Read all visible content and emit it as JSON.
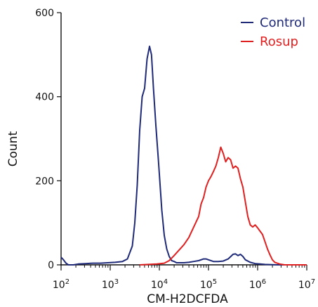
{
  "chart_data": {
    "type": "line",
    "title": "",
    "xlabel": "CM-H2DCFDA",
    "ylabel": "Count",
    "x_scale": "log10",
    "xlim": [
      100,
      10000000
    ],
    "ylim": [
      0,
      600
    ],
    "x_ticks": [
      {
        "value": 100,
        "base": "10",
        "exp": "2"
      },
      {
        "value": 1000,
        "base": "10",
        "exp": "3"
      },
      {
        "value": 10000,
        "base": "10",
        "exp": "4"
      },
      {
        "value": 100000,
        "base": "10",
        "exp": "5"
      },
      {
        "value": 1000000,
        "base": "10",
        "exp": "6"
      },
      {
        "value": 10000000,
        "base": "10",
        "exp": "7"
      }
    ],
    "y_ticks": [
      0,
      200,
      400,
      600
    ],
    "legend_position": "top-right",
    "series": [
      {
        "name": "Control",
        "color": "#1f2a78",
        "points": [
          [
            100,
            18
          ],
          [
            112,
            12
          ],
          [
            126,
            4
          ],
          [
            141,
            0
          ],
          [
            178,
            0
          ],
          [
            224,
            2
          ],
          [
            316,
            3
          ],
          [
            447,
            4
          ],
          [
            631,
            4
          ],
          [
            891,
            5
          ],
          [
            1259,
            6
          ],
          [
            1778,
            8
          ],
          [
            2239,
            14
          ],
          [
            2818,
            45
          ],
          [
            3162,
            100
          ],
          [
            3548,
            190
          ],
          [
            3981,
            320
          ],
          [
            4467,
            400
          ],
          [
            5012,
            420
          ],
          [
            5623,
            490
          ],
          [
            6310,
            520
          ],
          [
            6918,
            500
          ],
          [
            7586,
            420
          ],
          [
            8511,
            330
          ],
          [
            9550,
            250
          ],
          [
            11220,
            130
          ],
          [
            12589,
            70
          ],
          [
            14125,
            38
          ],
          [
            15849,
            20
          ],
          [
            17783,
            10
          ],
          [
            19953,
            8
          ],
          [
            22387,
            5
          ],
          [
            25119,
            5
          ],
          [
            31623,
            5
          ],
          [
            39811,
            6
          ],
          [
            50119,
            8
          ],
          [
            63096,
            10
          ],
          [
            79433,
            14
          ],
          [
            89125,
            14
          ],
          [
            100000,
            12
          ],
          [
            125893,
            8
          ],
          [
            158489,
            8
          ],
          [
            199526,
            9
          ],
          [
            251189,
            14
          ],
          [
            316228,
            25
          ],
          [
            354813,
            26
          ],
          [
            398107,
            22
          ],
          [
            446684,
            25
          ],
          [
            501187,
            20
          ],
          [
            562341,
            12
          ],
          [
            707946,
            6
          ],
          [
            891251,
            3
          ],
          [
            1122018,
            2
          ],
          [
            1412538,
            1
          ],
          [
            2511886,
            0
          ],
          [
            10000000,
            0
          ]
        ]
      },
      {
        "name": "Rosup",
        "color": "#e02020",
        "points": [
          [
            3981,
            0
          ],
          [
            8913,
            2
          ],
          [
            12589,
            4
          ],
          [
            15849,
            10
          ],
          [
            19953,
            22
          ],
          [
            25119,
            35
          ],
          [
            31623,
            48
          ],
          [
            39811,
            65
          ],
          [
            50119,
            90
          ],
          [
            63096,
            115
          ],
          [
            70795,
            145
          ],
          [
            79433,
            160
          ],
          [
            89125,
            185
          ],
          [
            100000,
            200
          ],
          [
            112202,
            210
          ],
          [
            125893,
            222
          ],
          [
            141254,
            235
          ],
          [
            158489,
            255
          ],
          [
            177828,
            280
          ],
          [
            199526,
            265
          ],
          [
            223872,
            245
          ],
          [
            251189,
            255
          ],
          [
            281838,
            250
          ],
          [
            316228,
            230
          ],
          [
            354813,
            235
          ],
          [
            398107,
            230
          ],
          [
            446684,
            205
          ],
          [
            501187,
            185
          ],
          [
            562341,
            150
          ],
          [
            630957,
            115
          ],
          [
            707946,
            95
          ],
          [
            794328,
            90
          ],
          [
            891251,
            95
          ],
          [
            1000000,
            88
          ],
          [
            1122018,
            80
          ],
          [
            1258925,
            72
          ],
          [
            1412538,
            55
          ],
          [
            1584893,
            38
          ],
          [
            1778279,
            24
          ],
          [
            1995262,
            12
          ],
          [
            2238721,
            6
          ],
          [
            2818383,
            2
          ],
          [
            3548134,
            0
          ],
          [
            10000000,
            0
          ]
        ]
      }
    ]
  }
}
